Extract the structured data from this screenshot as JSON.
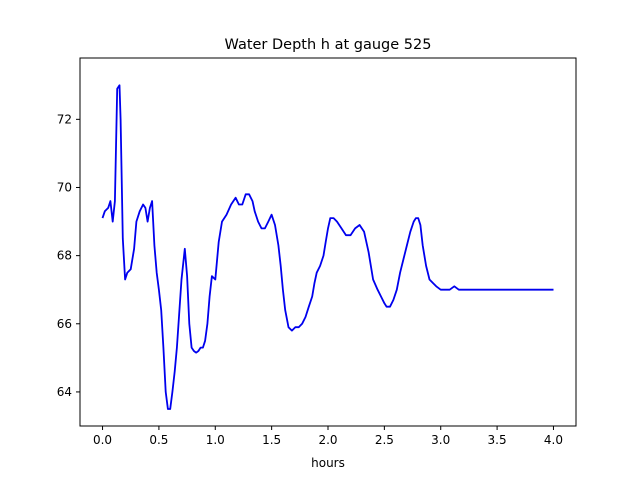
{
  "chart_data": {
    "type": "line",
    "title": "Water Depth h at gauge 525",
    "xlabel": "hours",
    "ylabel": "",
    "xlim": [
      -0.2,
      4.2
    ],
    "ylim": [
      63.0,
      73.8
    ],
    "grid": false,
    "x_ticks": [
      0.0,
      0.5,
      1.0,
      1.5,
      2.0,
      2.5,
      3.0,
      3.5,
      4.0
    ],
    "x_tick_labels": [
      "0.0",
      "0.5",
      "1.0",
      "1.5",
      "2.0",
      "2.5",
      "3.0",
      "3.5",
      "4.0"
    ],
    "y_ticks": [
      64,
      66,
      68,
      70,
      72
    ],
    "y_tick_labels": [
      "64",
      "66",
      "68",
      "70",
      "72"
    ],
    "series": [
      {
        "color": "#0000ee",
        "x": [
          0.0,
          0.02,
          0.05,
          0.07,
          0.09,
          0.11,
          0.13,
          0.15,
          0.16,
          0.18,
          0.2,
          0.22,
          0.25,
          0.28,
          0.3,
          0.33,
          0.36,
          0.38,
          0.4,
          0.42,
          0.44,
          0.46,
          0.48,
          0.5,
          0.52,
          0.54,
          0.56,
          0.58,
          0.6,
          0.62,
          0.64,
          0.66,
          0.68,
          0.7,
          0.73,
          0.75,
          0.77,
          0.79,
          0.81,
          0.83,
          0.85,
          0.87,
          0.89,
          0.91,
          0.93,
          0.95,
          0.97,
          1.0,
          1.03,
          1.06,
          1.1,
          1.14,
          1.18,
          1.21,
          1.24,
          1.27,
          1.3,
          1.33,
          1.35,
          1.38,
          1.41,
          1.44,
          1.47,
          1.5,
          1.53,
          1.56,
          1.58,
          1.6,
          1.62,
          1.65,
          1.68,
          1.71,
          1.74,
          1.77,
          1.8,
          1.83,
          1.86,
          1.88,
          1.9,
          1.93,
          1.96,
          1.98,
          2.0,
          2.02,
          2.05,
          2.08,
          2.12,
          2.16,
          2.2,
          2.24,
          2.28,
          2.32,
          2.36,
          2.4,
          2.44,
          2.47,
          2.5,
          2.52,
          2.55,
          2.58,
          2.61,
          2.64,
          2.67,
          2.7,
          2.73,
          2.76,
          2.78,
          2.8,
          2.82,
          2.84,
          2.87,
          2.9,
          2.93,
          2.96,
          3.0,
          3.04,
          3.08,
          3.12,
          3.16,
          3.2,
          3.24,
          3.28,
          3.32,
          3.36,
          3.4,
          3.44,
          3.48,
          3.52,
          3.56,
          3.6,
          3.63,
          3.66,
          3.7,
          3.74,
          3.78,
          3.82,
          3.86,
          3.9,
          3.94,
          3.97,
          4.0
        ],
        "y": [
          69.1,
          69.3,
          69.4,
          69.6,
          69.0,
          69.6,
          72.9,
          73.0,
          72.0,
          68.5,
          67.3,
          67.5,
          67.6,
          68.2,
          69.0,
          69.3,
          69.5,
          69.4,
          69.0,
          69.4,
          69.6,
          68.3,
          67.5,
          67.0,
          66.4,
          65.3,
          64.0,
          63.5,
          63.5,
          64.0,
          64.6,
          65.3,
          66.3,
          67.3,
          68.2,
          67.4,
          66.0,
          65.3,
          65.2,
          65.15,
          65.2,
          65.3,
          65.3,
          65.5,
          66.0,
          66.8,
          67.4,
          67.3,
          68.4,
          69.0,
          69.2,
          69.5,
          69.7,
          69.5,
          69.5,
          69.8,
          69.8,
          69.6,
          69.3,
          69.0,
          68.8,
          68.8,
          69.0,
          69.2,
          68.9,
          68.3,
          67.7,
          67.0,
          66.4,
          65.9,
          65.8,
          65.9,
          65.9,
          66.0,
          66.2,
          66.5,
          66.8,
          67.2,
          67.5,
          67.7,
          68.0,
          68.4,
          68.8,
          69.1,
          69.1,
          69.0,
          68.8,
          68.6,
          68.6,
          68.8,
          68.9,
          68.7,
          68.1,
          67.3,
          67.0,
          66.8,
          66.6,
          66.5,
          66.5,
          66.7,
          67.0,
          67.5,
          67.9,
          68.3,
          68.7,
          69.0,
          69.1,
          69.1,
          68.9,
          68.3,
          67.7,
          67.3,
          67.2,
          67.1,
          67.0,
          67.0,
          67.0,
          67.1,
          67.0,
          67.0,
          67.0,
          67.0,
          67.0,
          67.0,
          67.0,
          67.0,
          67.0,
          67.0,
          67.0,
          67.0,
          67.0,
          67.0,
          67.0,
          67.0,
          67.0,
          67.0,
          67.0,
          67.0,
          67.0,
          67.0,
          67.0
        ]
      }
    ]
  }
}
